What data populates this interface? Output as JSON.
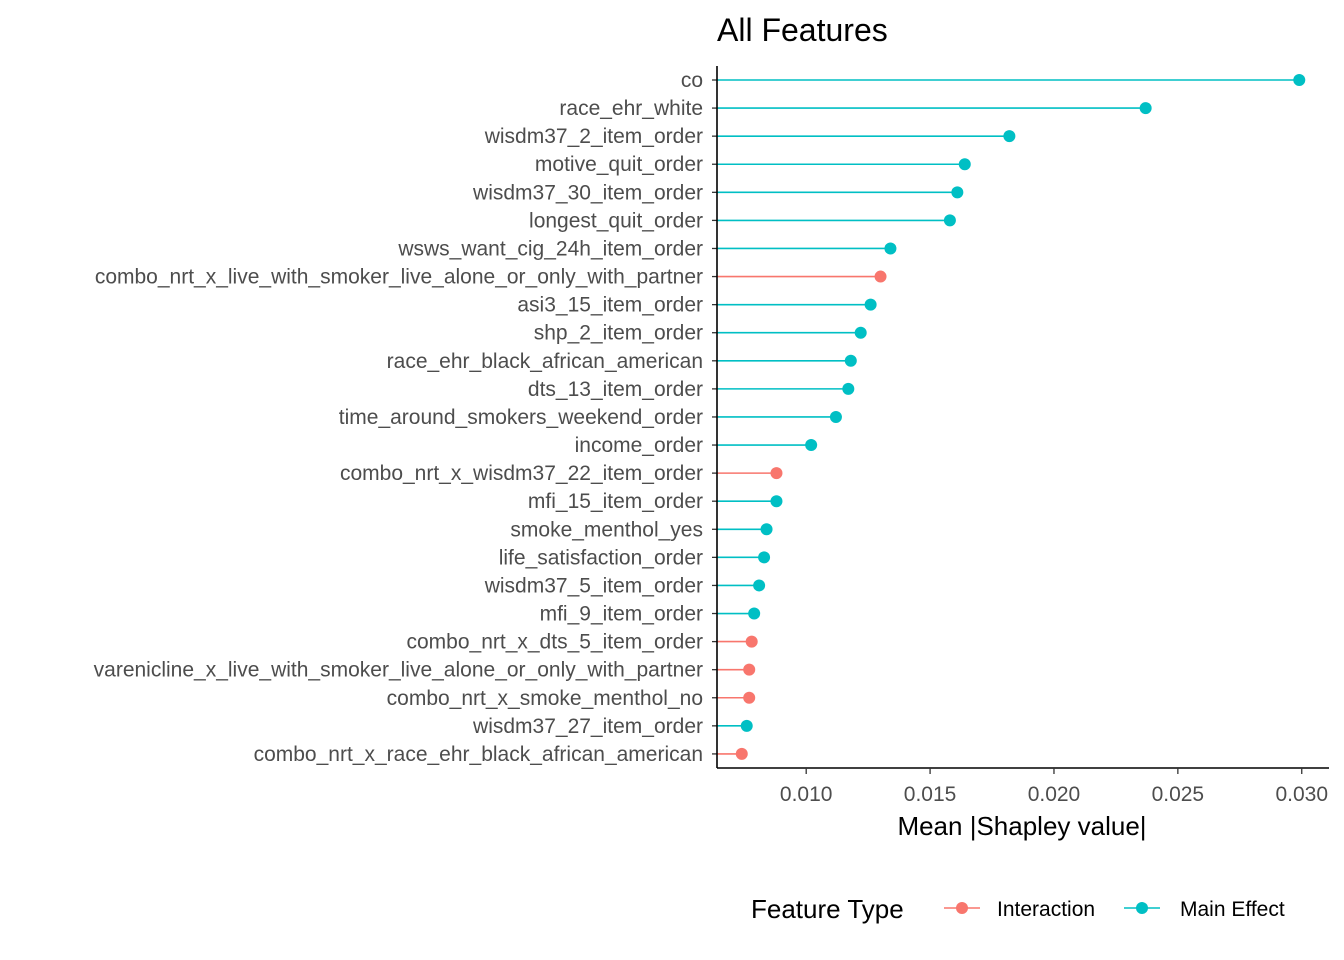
{
  "chart_data": {
    "type": "lollipop",
    "title": "All Features",
    "xlabel": "Mean |Shapley value|",
    "xlim": [
      0.0064,
      0.0311
    ],
    "xticks": [
      0.01,
      0.015,
      0.02,
      0.025,
      0.03
    ],
    "xtick_labels": [
      "0.010",
      "0.015",
      "0.020",
      "0.025",
      "0.030"
    ],
    "grid": false,
    "legend": {
      "title": "Feature Type",
      "position": "bottom",
      "entries": [
        {
          "label": "Interaction",
          "color": "#F8766D"
        },
        {
          "label": "Main Effect",
          "color": "#00BFC4"
        }
      ]
    },
    "features": [
      {
        "name": "co",
        "value": 0.0299,
        "type": "Main Effect"
      },
      {
        "name": "race_ehr_white",
        "value": 0.0237,
        "type": "Main Effect"
      },
      {
        "name": "wisdm37_2_item_order",
        "value": 0.0182,
        "type": "Main Effect"
      },
      {
        "name": "motive_quit_order",
        "value": 0.0164,
        "type": "Main Effect"
      },
      {
        "name": "wisdm37_30_item_order",
        "value": 0.0161,
        "type": "Main Effect"
      },
      {
        "name": "longest_quit_order",
        "value": 0.0158,
        "type": "Main Effect"
      },
      {
        "name": "wsws_want_cig_24h_item_order",
        "value": 0.0134,
        "type": "Main Effect"
      },
      {
        "name": "combo_nrt_x_live_with_smoker_live_alone_or_only_with_partner",
        "value": 0.013,
        "type": "Interaction"
      },
      {
        "name": "asi3_15_item_order",
        "value": 0.0126,
        "type": "Main Effect"
      },
      {
        "name": "shp_2_item_order",
        "value": 0.0122,
        "type": "Main Effect"
      },
      {
        "name": "race_ehr_black_african_american",
        "value": 0.0118,
        "type": "Main Effect"
      },
      {
        "name": "dts_13_item_order",
        "value": 0.0117,
        "type": "Main Effect"
      },
      {
        "name": "time_around_smokers_weekend_order",
        "value": 0.0112,
        "type": "Main Effect"
      },
      {
        "name": "income_order",
        "value": 0.0102,
        "type": "Main Effect"
      },
      {
        "name": "combo_nrt_x_wisdm37_22_item_order",
        "value": 0.0088,
        "type": "Interaction"
      },
      {
        "name": "mfi_15_item_order",
        "value": 0.0088,
        "type": "Main Effect"
      },
      {
        "name": "smoke_menthol_yes",
        "value": 0.0084,
        "type": "Main Effect"
      },
      {
        "name": "life_satisfaction_order",
        "value": 0.0083,
        "type": "Main Effect"
      },
      {
        "name": "wisdm37_5_item_order",
        "value": 0.0081,
        "type": "Main Effect"
      },
      {
        "name": "mfi_9_item_order",
        "value": 0.0079,
        "type": "Main Effect"
      },
      {
        "name": "combo_nrt_x_dts_5_item_order",
        "value": 0.0078,
        "type": "Interaction"
      },
      {
        "name": "varenicline_x_live_with_smoker_live_alone_or_only_with_partner",
        "value": 0.0077,
        "type": "Interaction"
      },
      {
        "name": "combo_nrt_x_smoke_menthol_no",
        "value": 0.0077,
        "type": "Interaction"
      },
      {
        "name": "wisdm37_27_item_order",
        "value": 0.0076,
        "type": "Main Effect"
      },
      {
        "name": "combo_nrt_x_race_ehr_black_african_american",
        "value": 0.0074,
        "type": "Interaction"
      }
    ]
  }
}
